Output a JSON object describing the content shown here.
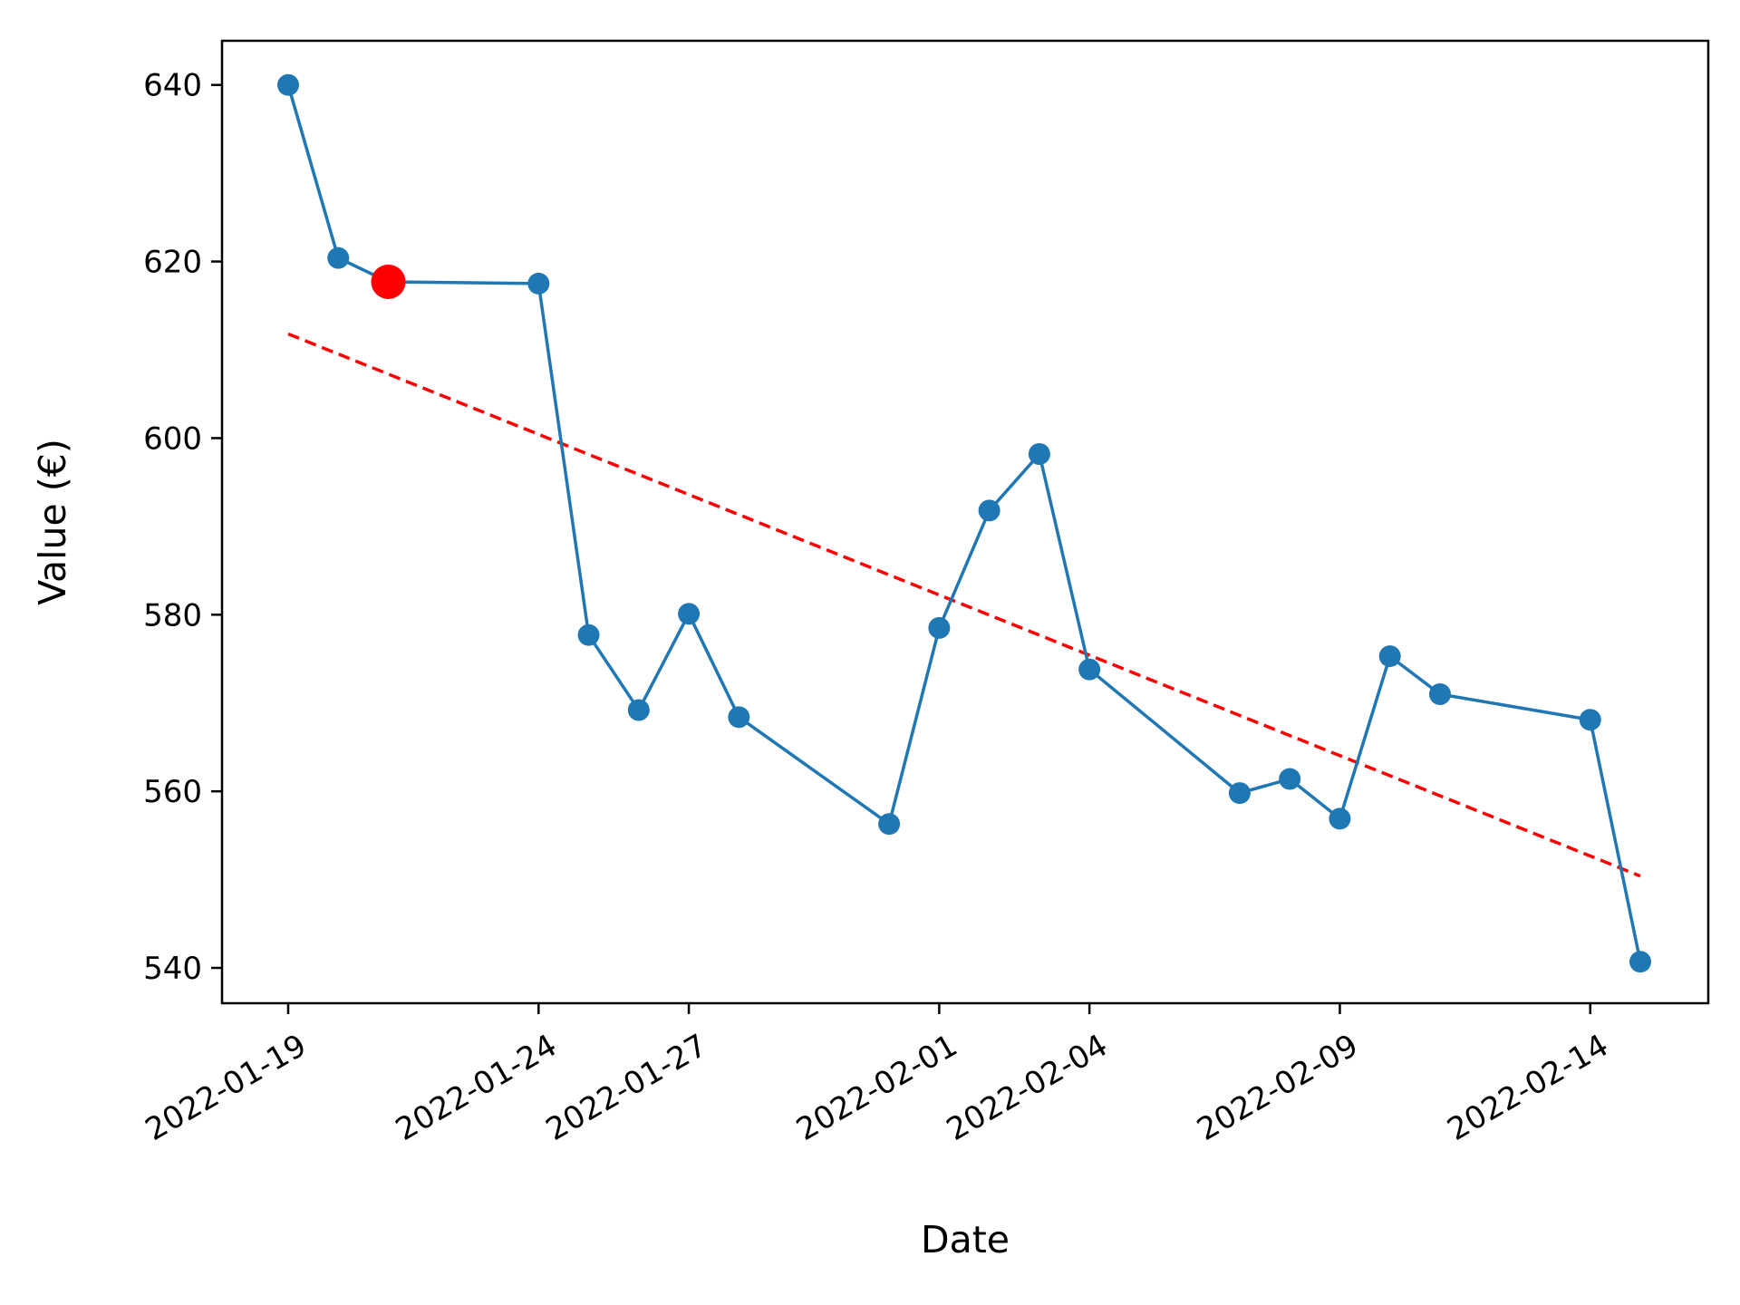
{
  "chart_data": {
    "type": "line",
    "title": "",
    "xlabel": "Date",
    "ylabel": "Value (€)",
    "x_tick_labels": [
      "2022-01-19",
      "2022-01-24",
      "2022-01-27",
      "2022-02-01",
      "2022-02-04",
      "2022-02-09",
      "2022-02-14"
    ],
    "y_ticks": [
      540,
      560,
      580,
      600,
      620,
      640
    ],
    "ylim": [
      536,
      645
    ],
    "x": [
      "2022-01-19",
      "2022-01-20",
      "2022-01-21",
      "2022-01-24",
      "2022-01-25",
      "2022-01-26",
      "2022-01-27",
      "2022-01-28",
      "2022-01-31",
      "2022-02-01",
      "2022-02-02",
      "2022-02-03",
      "2022-02-04",
      "2022-02-07",
      "2022-02-08",
      "2022-02-09",
      "2022-02-10",
      "2022-02-11",
      "2022-02-14",
      "2022-02-15"
    ],
    "series": [
      {
        "values": [
          640.0,
          620.4,
          617.7,
          617.5,
          577.7,
          569.2,
          580.1,
          568.4,
          556.3,
          578.5,
          591.8,
          598.2,
          573.8,
          559.8,
          561.4,
          556.9,
          575.3,
          571.0,
          568.1,
          540.7
        ],
        "color": "#1f77b4",
        "style": "solid line with circle markers"
      }
    ],
    "trend_line": {
      "start": 611.8,
      "end": 550.4,
      "color": "#ff0000",
      "style": "dashed"
    },
    "highlight_point": {
      "x": "2022-01-21",
      "value": 617.7,
      "color": "#ff0000"
    },
    "grid": false,
    "legend": "none"
  }
}
